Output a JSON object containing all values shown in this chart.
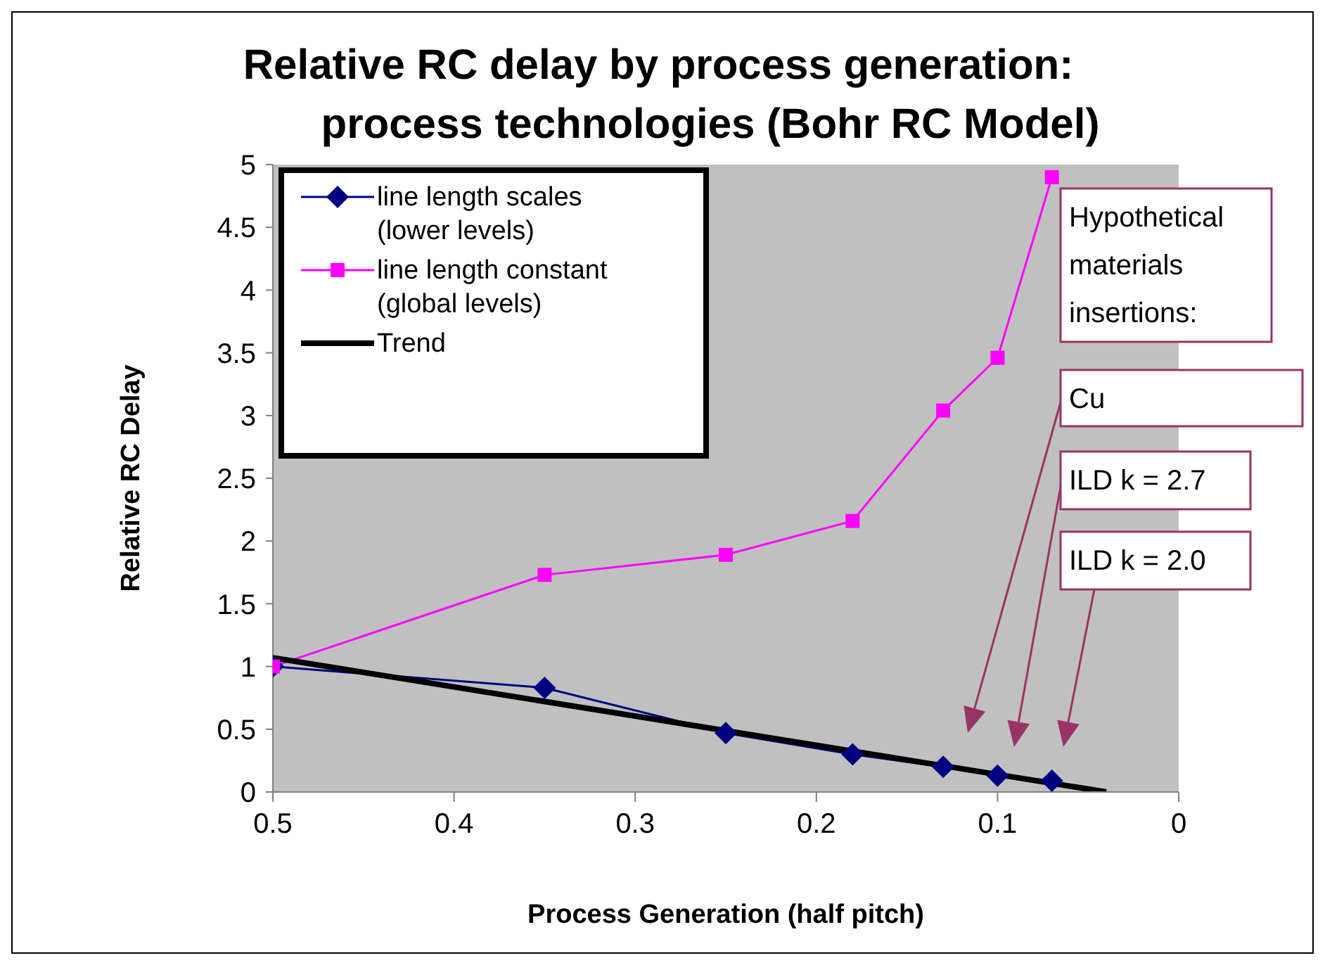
{
  "chart_data": {
    "type": "line",
    "title": "Relative RC delay by process generation:\nprocess technologies (Bohr RC Model)",
    "xlabel": "Process Generation (half pitch)",
    "ylabel": "Relative RC Delay",
    "xlim": [
      0.5,
      0
    ],
    "xticks": [
      0.5,
      0.4,
      0.3,
      0.2,
      0.1,
      0
    ],
    "ylim": [
      0,
      5
    ],
    "yticks": [
      0,
      0.5,
      1,
      1.5,
      2,
      2.5,
      3,
      3.5,
      4,
      4.5,
      5
    ],
    "grid": false,
    "legend": "top left",
    "x": [
      0.5,
      0.35,
      0.25,
      0.18,
      0.13,
      0.1,
      0.07
    ],
    "series": [
      {
        "name": "line length scales\n(lower levels)",
        "color": "#000080",
        "marker": "diamond",
        "values": [
          1.0,
          0.83,
          0.47,
          0.3,
          0.2,
          0.13,
          0.09
        ]
      },
      {
        "name": "line length constant\n(global levels)",
        "color": "#ff00ff",
        "marker": "square",
        "values": [
          1.0,
          1.73,
          1.89,
          2.16,
          3.04,
          3.46,
          4.9
        ]
      },
      {
        "name": "Trend",
        "color": "#000000",
        "marker": "none",
        "x": [
          0.5,
          0.04
        ],
        "values": [
          1.07,
          0
        ]
      }
    ],
    "annotations": [
      "Hypothetical materials insertions:",
      "Cu",
      "ILD k = 2.7",
      "ILD k = 2.0"
    ]
  }
}
